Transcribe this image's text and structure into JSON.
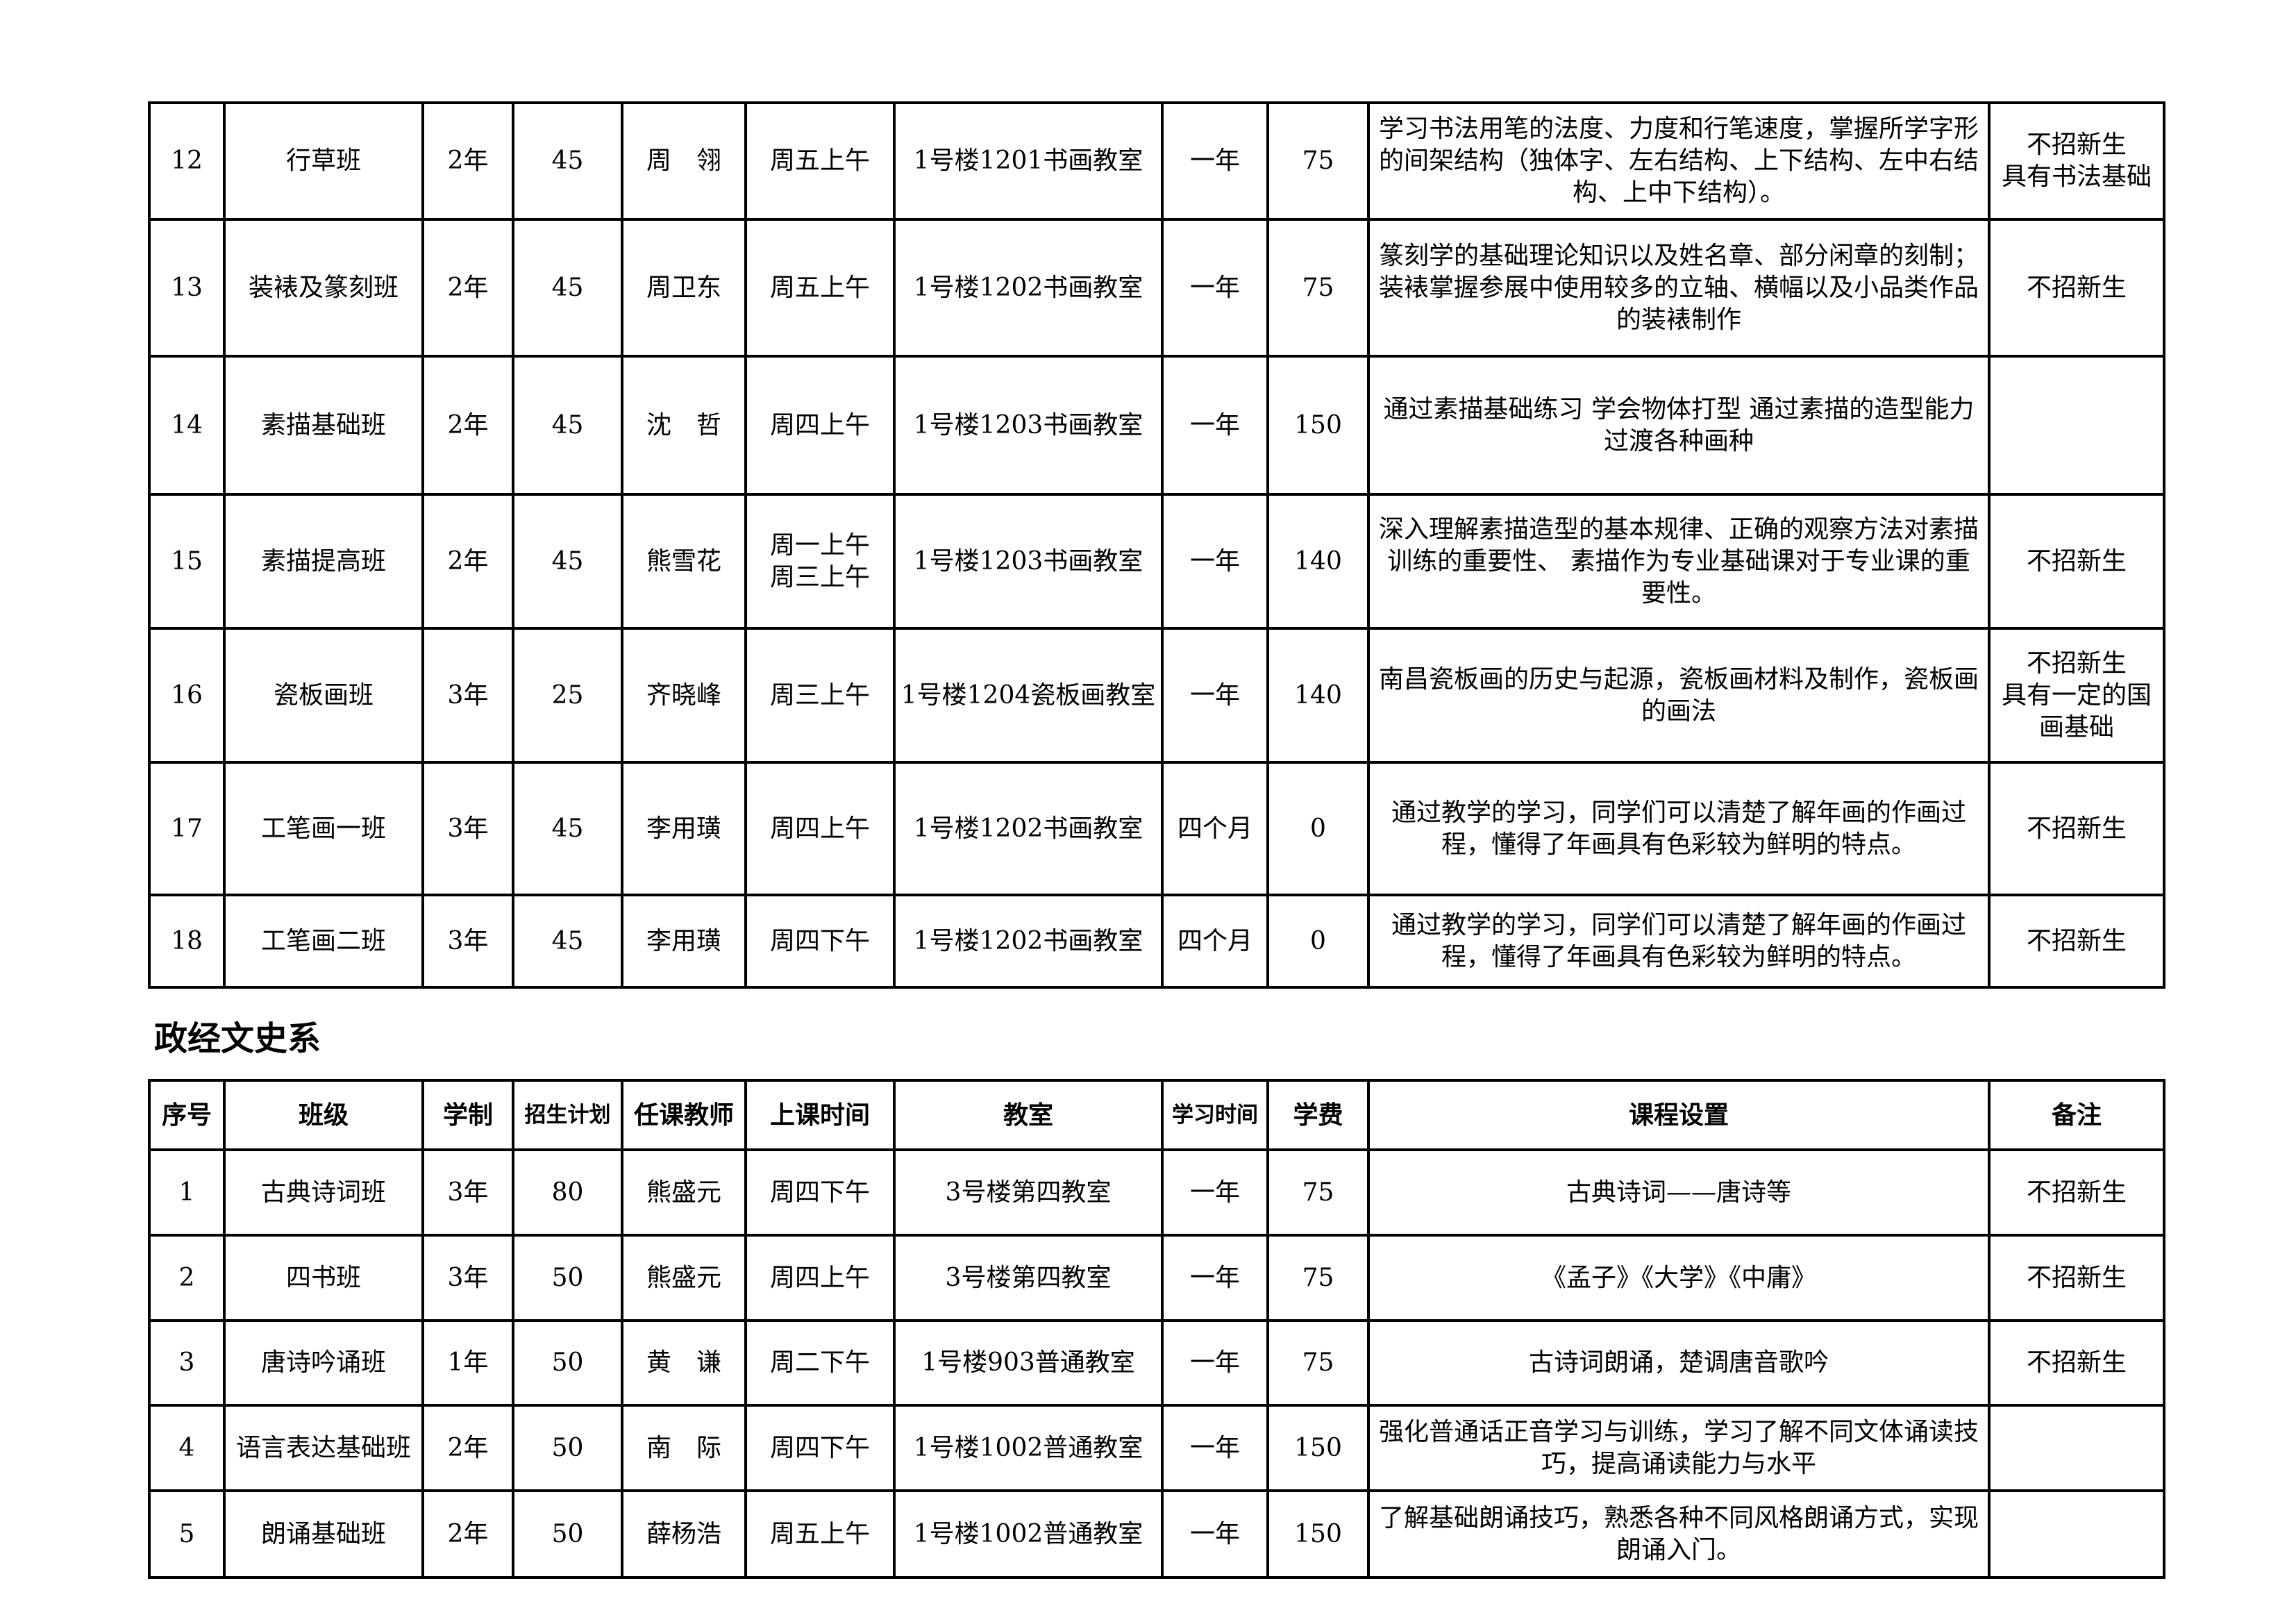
{
  "table1": {
    "rows": [
      {
        "no": "12",
        "class": "行草班",
        "years": "2年",
        "quota": "45",
        "teacher": "周　翎",
        "time": "周五上午",
        "room": "1号楼1201书画教室",
        "duration": "一年",
        "fee": "75",
        "course": "学习书法用笔的法度、力度和行笔速度，掌握所学字形的间架结构（独体字、左右结构、上下结构、左中右结构、上中下结构）。",
        "note": "不招新生\n具有书法基础"
      },
      {
        "no": "13",
        "class": "装裱及篆刻班",
        "years": "2年",
        "quota": "45",
        "teacher": "周卫东",
        "time": "周五上午",
        "room": "1号楼1202书画教室",
        "duration": "一年",
        "fee": "75",
        "course": "篆刻学的基础理论知识以及姓名章、部分闲章的刻制；装裱掌握参展中使用较多的立轴、横幅以及小品类作品的装裱制作",
        "note": "不招新生"
      },
      {
        "no": "14",
        "class": "素描基础班",
        "years": "2年",
        "quota": "45",
        "teacher": "沈　哲",
        "time": "周四上午",
        "room": "1号楼1203书画教室",
        "duration": "一年",
        "fee": "150",
        "course": "通过素描基础练习 学会物体打型 通过素描的造型能力过渡各种画种",
        "note": ""
      },
      {
        "no": "15",
        "class": "素描提高班",
        "years": "2年",
        "quota": "45",
        "teacher": "熊雪花",
        "time": "周一上午\n周三上午",
        "room": "1号楼1203书画教室",
        "duration": "一年",
        "fee": "140",
        "course": "深入理解素描造型的基本规律、正确的观察方法对素描训练的重要性、 素描作为专业基础课对于专业课的重要性。",
        "note": "不招新生"
      },
      {
        "no": "16",
        "class": "瓷板画班",
        "years": "3年",
        "quota": "25",
        "teacher": "齐晓峰",
        "time": "周三上午",
        "room": "1号楼1204瓷板画教室",
        "duration": "一年",
        "fee": "140",
        "course": "南昌瓷板画的历史与起源，瓷板画材料及制作，瓷板画的画法",
        "note": "不招新生\n具有一定的国画基础"
      },
      {
        "no": "17",
        "class": "工笔画一班",
        "years": "3年",
        "quota": "45",
        "teacher": "李用璜",
        "time": "周四上午",
        "room": "1号楼1202书画教室",
        "duration": "四个月",
        "fee": "0",
        "course": "通过教学的学习，同学们可以清楚了解年画的作画过程，懂得了年画具有色彩较为鲜明的特点。",
        "note": "不招新生"
      },
      {
        "no": "18",
        "class": "工笔画二班",
        "years": "3年",
        "quota": "45",
        "teacher": "李用璜",
        "time": "周四下午",
        "room": "1号楼1202书画教室",
        "duration": "四个月",
        "fee": "0",
        "course": "通过教学的学习，同学们可以清楚了解年画的作画过程，懂得了年画具有色彩较为鲜明的特点。",
        "note": "不招新生"
      }
    ]
  },
  "section2": {
    "title": "政经文史系",
    "headers": [
      "序号",
      "班级",
      "学制",
      "招生计划",
      "任课教师",
      "上课时间",
      "教室",
      "学习时间",
      "学费",
      "课程设置",
      "备注"
    ],
    "rows": [
      {
        "no": "1",
        "class": "古典诗词班",
        "years": "3年",
        "quota": "80",
        "teacher": "熊盛元",
        "time": "周四下午",
        "room": "3号楼第四教室",
        "duration": "一年",
        "fee": "75",
        "course": "古典诗词——唐诗等",
        "note": "不招新生"
      },
      {
        "no": "2",
        "class": "四书班",
        "years": "3年",
        "quota": "50",
        "teacher": "熊盛元",
        "time": "周四上午",
        "room": "3号楼第四教室",
        "duration": "一年",
        "fee": "75",
        "course": "《孟子》《大学》《中庸》",
        "note": "不招新生"
      },
      {
        "no": "3",
        "class": "唐诗吟诵班",
        "years": "1年",
        "quota": "50",
        "teacher": "黄　谦",
        "time": "周二下午",
        "room": "1号楼903普通教室",
        "duration": "一年",
        "fee": "75",
        "course": "古诗词朗诵，楚调唐音歌吟",
        "note": "不招新生"
      },
      {
        "no": "4",
        "class": "语言表达基础班",
        "years": "2年",
        "quota": "50",
        "teacher": "南　际",
        "time": "周四下午",
        "room": "1号楼1002普通教室",
        "duration": "一年",
        "fee": "150",
        "course": "强化普通话正音学习与训练，学习了解不同文体诵读技巧，提高诵读能力与水平",
        "note": ""
      },
      {
        "no": "5",
        "class": "朗诵基础班",
        "years": "2年",
        "quota": "50",
        "teacher": "薛杨浩",
        "time": "周五上午",
        "room": "1号楼1002普通教室",
        "duration": "一年",
        "fee": "150",
        "course": "了解基础朗诵技巧，熟悉各种不同风格朗诵方式，实现朗诵入门。",
        "note": ""
      }
    ]
  }
}
